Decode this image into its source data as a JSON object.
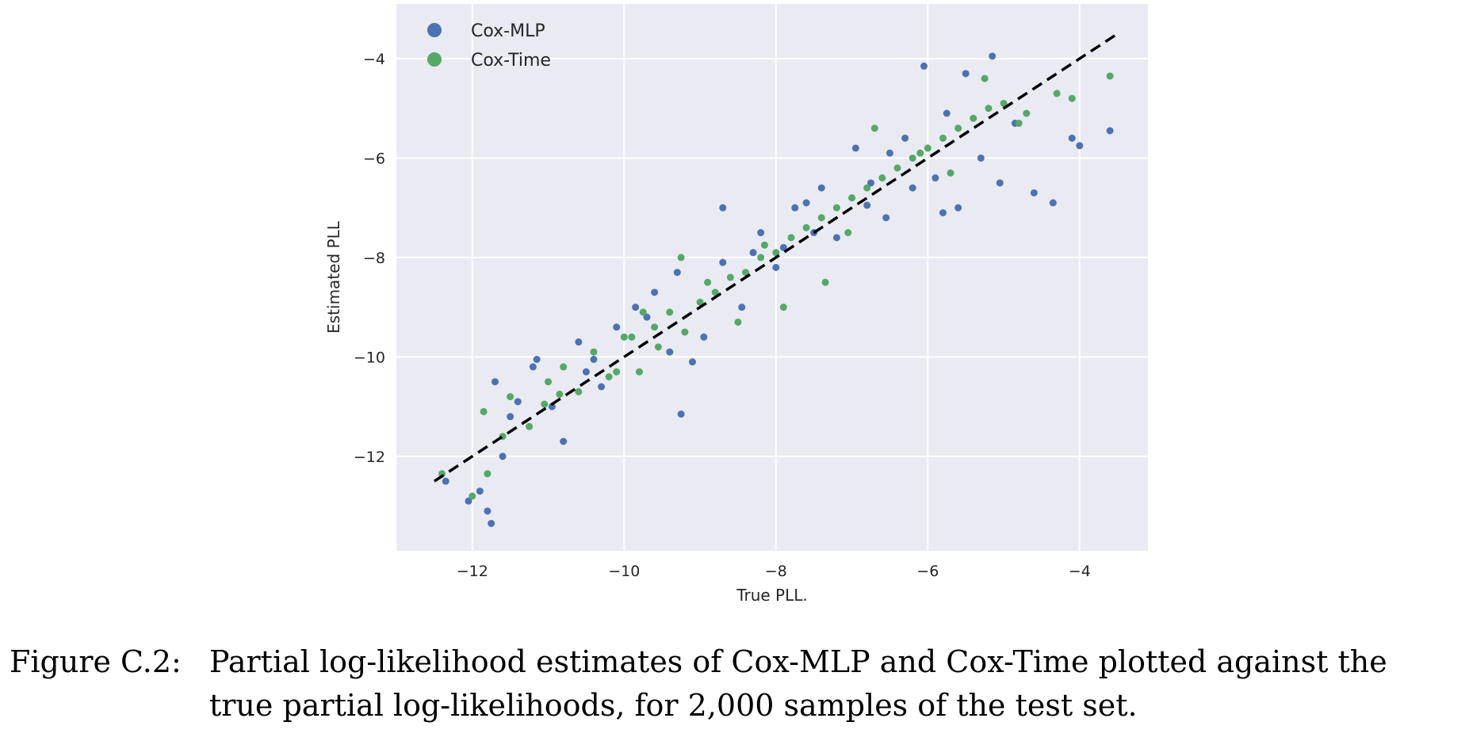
{
  "chart_data": {
    "type": "scatter",
    "title": "",
    "xlabel": "True PLL.",
    "ylabel": "Estimated PLL",
    "xlim": [
      -13.0,
      -3.1
    ],
    "ylim": [
      -13.9,
      -2.9
    ],
    "xticks": [
      -12,
      -10,
      -8,
      -6,
      -4
    ],
    "yticks": [
      -4,
      -6,
      -8,
      -10,
      -12
    ],
    "xtick_labels": [
      "−12",
      "−10",
      "−8",
      "−6",
      "−4"
    ],
    "ytick_labels": [
      "−4",
      "−6",
      "−8",
      "−10",
      "−12"
    ],
    "grid": true,
    "background": "#eaeaf2",
    "legend_position": "top-left",
    "series": [
      {
        "name": "Cox-MLP",
        "color": "#4c72b0",
        "points": [
          [
            -12.35,
            -12.5
          ],
          [
            -12.05,
            -12.9
          ],
          [
            -11.9,
            -12.7
          ],
          [
            -11.8,
            -13.1
          ],
          [
            -11.75,
            -13.35
          ],
          [
            -11.6,
            -12.0
          ],
          [
            -11.7,
            -10.5
          ],
          [
            -11.4,
            -10.9
          ],
          [
            -11.2,
            -10.2
          ],
          [
            -10.95,
            -11.0
          ],
          [
            -10.8,
            -11.7
          ],
          [
            -10.5,
            -10.3
          ],
          [
            -10.3,
            -10.6
          ],
          [
            -10.6,
            -9.7
          ],
          [
            -10.1,
            -9.4
          ],
          [
            -9.85,
            -9.0
          ],
          [
            -9.6,
            -8.7
          ],
          [
            -9.4,
            -9.9
          ],
          [
            -9.1,
            -10.1
          ],
          [
            -9.25,
            -11.15
          ],
          [
            -8.95,
            -9.6
          ],
          [
            -8.7,
            -8.1
          ],
          [
            -8.45,
            -9.0
          ],
          [
            -8.2,
            -7.5
          ],
          [
            -8.0,
            -8.2
          ],
          [
            -7.9,
            -7.8
          ],
          [
            -7.75,
            -7.0
          ],
          [
            -7.5,
            -7.5
          ],
          [
            -7.4,
            -6.6
          ],
          [
            -7.2,
            -7.6
          ],
          [
            -6.95,
            -5.8
          ],
          [
            -6.75,
            -6.5
          ],
          [
            -6.55,
            -7.2
          ],
          [
            -6.3,
            -5.6
          ],
          [
            -6.05,
            -4.15
          ],
          [
            -5.9,
            -6.4
          ],
          [
            -5.75,
            -5.1
          ],
          [
            -5.6,
            -7.0
          ],
          [
            -5.5,
            -4.3
          ],
          [
            -5.3,
            -6.0
          ],
          [
            -5.15,
            -3.95
          ],
          [
            -5.05,
            -6.5
          ],
          [
            -4.85,
            -5.3
          ],
          [
            -4.6,
            -6.7
          ],
          [
            -4.35,
            -6.9
          ],
          [
            -4.1,
            -5.6
          ],
          [
            -4.0,
            -5.75
          ],
          [
            -3.6,
            -5.45
          ],
          [
            -6.2,
            -6.6
          ],
          [
            -5.8,
            -7.1
          ],
          [
            -8.7,
            -7.0
          ],
          [
            -9.3,
            -8.3
          ],
          [
            -10.4,
            -10.05
          ],
          [
            -11.5,
            -11.2
          ],
          [
            -11.15,
            -10.05
          ],
          [
            -7.6,
            -6.9
          ],
          [
            -6.5,
            -5.9
          ],
          [
            -8.3,
            -7.9
          ],
          [
            -9.7,
            -9.2
          ],
          [
            -6.8,
            -6.95
          ]
        ]
      },
      {
        "name": "Cox-Time",
        "color": "#55a868",
        "points": [
          [
            -12.4,
            -12.35
          ],
          [
            -12.0,
            -12.8
          ],
          [
            -11.8,
            -12.35
          ],
          [
            -11.6,
            -11.6
          ],
          [
            -11.85,
            -11.1
          ],
          [
            -11.5,
            -10.8
          ],
          [
            -11.25,
            -11.4
          ],
          [
            -11.0,
            -10.5
          ],
          [
            -10.8,
            -10.2
          ],
          [
            -10.6,
            -10.7
          ],
          [
            -10.4,
            -9.9
          ],
          [
            -10.2,
            -10.4
          ],
          [
            -10.0,
            -9.6
          ],
          [
            -9.8,
            -10.3
          ],
          [
            -9.6,
            -9.4
          ],
          [
            -9.4,
            -9.1
          ],
          [
            -9.2,
            -9.5
          ],
          [
            -9.0,
            -8.9
          ],
          [
            -8.8,
            -8.7
          ],
          [
            -8.6,
            -8.4
          ],
          [
            -8.4,
            -8.3
          ],
          [
            -8.2,
            -8.0
          ],
          [
            -8.0,
            -7.9
          ],
          [
            -7.8,
            -7.6
          ],
          [
            -7.6,
            -7.4
          ],
          [
            -7.4,
            -7.2
          ],
          [
            -7.2,
            -7.0
          ],
          [
            -7.0,
            -6.8
          ],
          [
            -6.8,
            -6.6
          ],
          [
            -6.6,
            -6.4
          ],
          [
            -6.4,
            -6.2
          ],
          [
            -6.2,
            -6.0
          ],
          [
            -6.0,
            -5.8
          ],
          [
            -5.8,
            -5.6
          ],
          [
            -5.6,
            -5.4
          ],
          [
            -5.4,
            -5.2
          ],
          [
            -5.2,
            -5.0
          ],
          [
            -5.0,
            -4.9
          ],
          [
            -4.8,
            -5.3
          ],
          [
            -4.3,
            -4.7
          ],
          [
            -4.1,
            -4.8
          ],
          [
            -3.6,
            -4.35
          ],
          [
            -5.25,
            -4.4
          ],
          [
            -7.35,
            -8.5
          ],
          [
            -7.9,
            -9.0
          ],
          [
            -8.5,
            -9.3
          ],
          [
            -9.25,
            -8.0
          ],
          [
            -10.1,
            -10.3
          ],
          [
            -9.9,
            -9.6
          ],
          [
            -9.55,
            -9.8
          ],
          [
            -6.7,
            -5.4
          ],
          [
            -6.1,
            -5.9
          ],
          [
            -5.7,
            -6.3
          ],
          [
            -7.05,
            -7.5
          ],
          [
            -8.9,
            -8.5
          ],
          [
            -9.75,
            -9.1
          ],
          [
            -11.05,
            -10.95
          ],
          [
            -10.85,
            -10.75
          ],
          [
            -8.15,
            -7.75
          ],
          [
            -4.7,
            -5.1
          ]
        ]
      }
    ],
    "reference_line": {
      "style": "dashed",
      "color": "#000000",
      "from": [
        -12.5,
        -12.5
      ],
      "to": [
        -3.5,
        -3.5
      ]
    }
  },
  "caption": {
    "label": "Figure C.2:",
    "line1": "Partial log-likelihood estimates of Cox-MLP and Cox-Time plotted against the",
    "line2": "true partial log-likelihoods, for 2,000 samples of the test set."
  }
}
